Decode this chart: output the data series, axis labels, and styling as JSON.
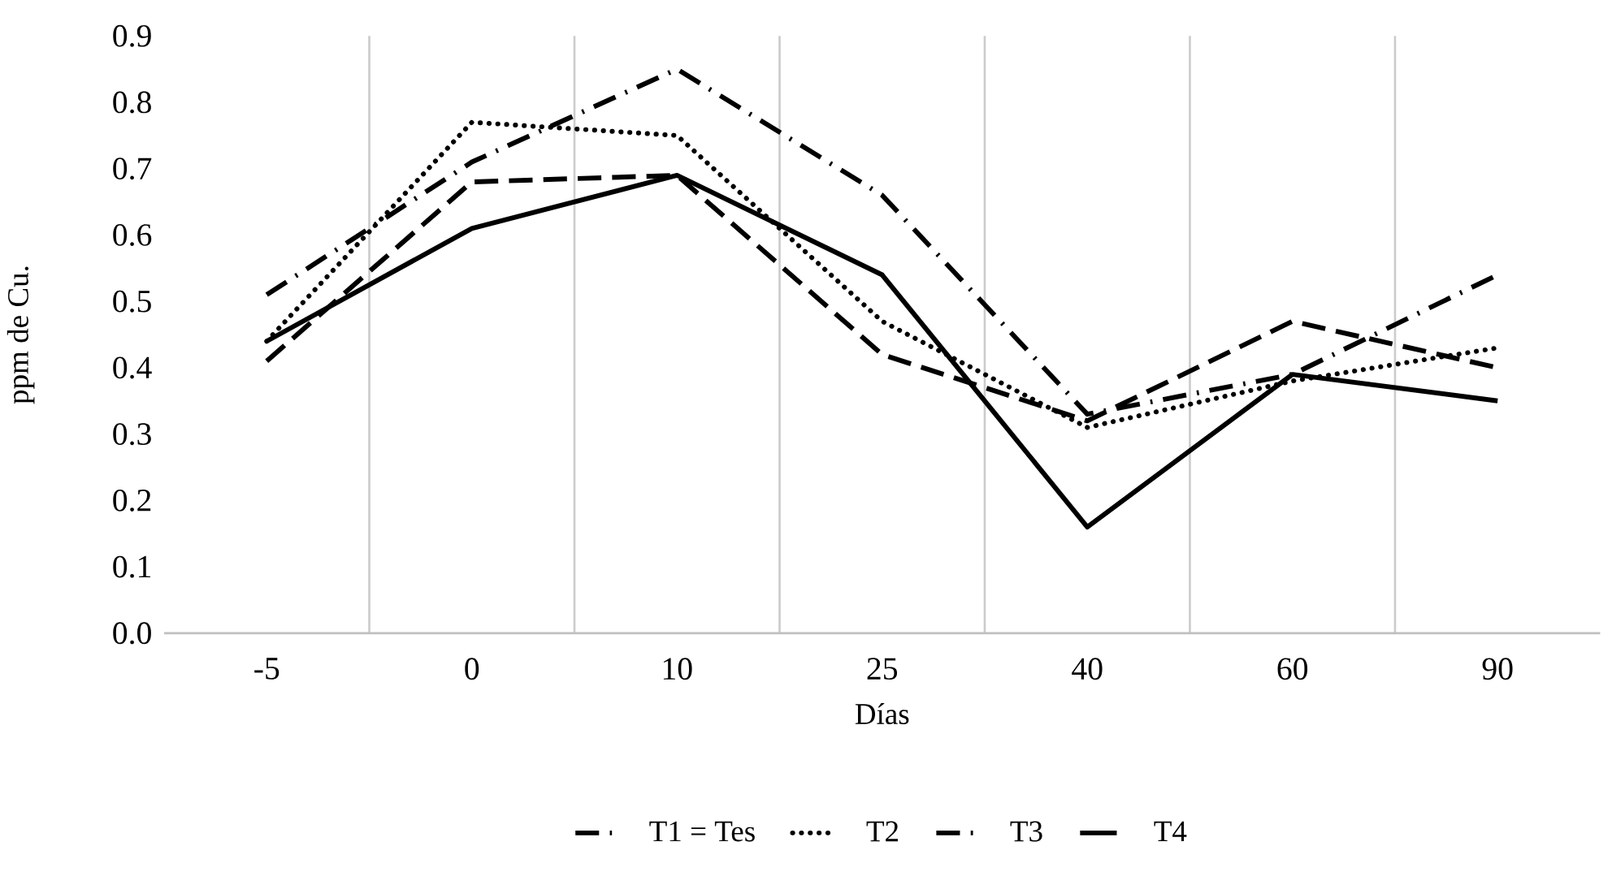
{
  "chart_data": {
    "type": "line",
    "xlabel": "Días",
    "ylabel": "ppm de Cu.",
    "categories": [
      "-5",
      "0",
      "10",
      "25",
      "40",
      "60",
      "90"
    ],
    "series": [
      {
        "name": "T1 = Tes",
        "color": "#000000",
        "line_style": "dashdot",
        "values": [
          0.51,
          0.71,
          0.85,
          0.66,
          0.33,
          0.39,
          0.54
        ]
      },
      {
        "name": "T2",
        "color": "#000000",
        "line_style": "dotted",
        "values": [
          0.44,
          0.77,
          0.75,
          0.47,
          0.31,
          0.38,
          0.43
        ]
      },
      {
        "name": "T3",
        "color": "#000000",
        "line_style": "dashed",
        "values": [
          0.41,
          0.68,
          0.69,
          0.42,
          0.32,
          0.47,
          0.4
        ]
      },
      {
        "name": "T4",
        "color": "#000000",
        "line_style": "solid",
        "values": [
          0.44,
          0.61,
          0.69,
          0.54,
          0.16,
          0.39,
          0.35
        ]
      }
    ],
    "ylim": [
      0,
      0.9
    ],
    "yticks": [
      {
        "value": 0,
        "label": "0.0"
      },
      0.1,
      0.2,
      0.3,
      0.4,
      0.5,
      0.6,
      0.7,
      0.8,
      0.9
    ],
    "grid": "x",
    "legend": "bottom",
    "marker": "none"
  }
}
